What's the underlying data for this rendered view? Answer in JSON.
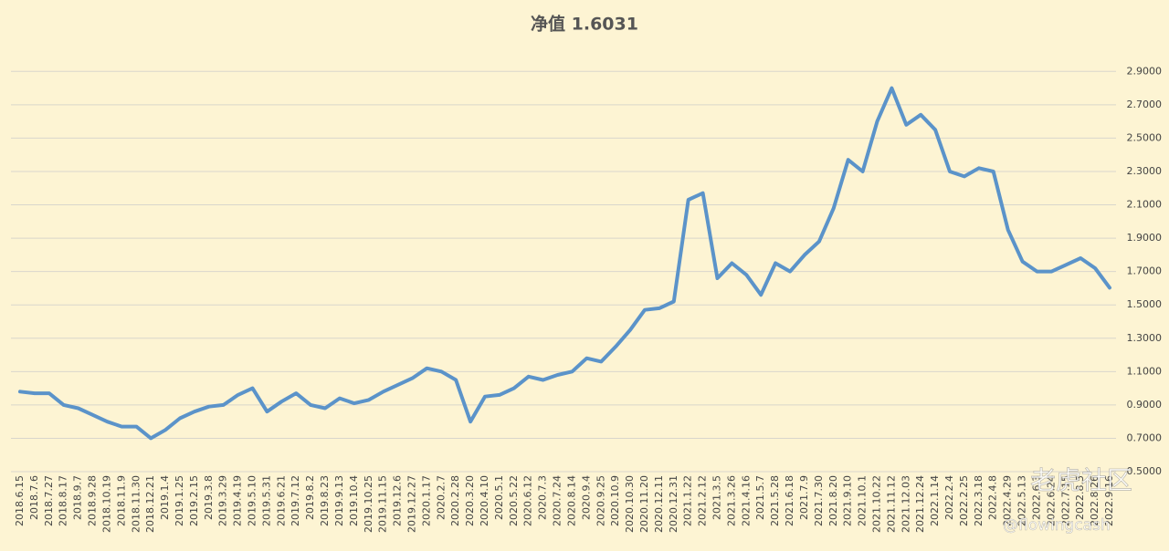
{
  "chart_data": {
    "type": "line",
    "title": "净值 1.6031",
    "categories": [
      "2018.6.15",
      "2018.7.6",
      "2018.7.27",
      "2018.8.17",
      "2018.9.7",
      "2018.9.28",
      "2018.10.19",
      "2018.11.9",
      "2018.11.30",
      "2018.12.21",
      "2019.1.4",
      "2019.1.25",
      "2019.2.15",
      "2019.3.8",
      "2019.3.29",
      "2019.4.19",
      "2019.5.10",
      "2019.5.31",
      "2019.6.21",
      "2019.7.12",
      "2019.8.2",
      "2019.8.23",
      "2019.9.13",
      "2019.10.4",
      "2019.10.25",
      "2019.11.15",
      "2019.12.6",
      "2019.12.27",
      "2020.1.17",
      "2020.2.7",
      "2020.2.28",
      "2020.3.20",
      "2020.4.10",
      "2020.5.1",
      "2020.5.22",
      "2020.6.12",
      "2020.7.3",
      "2020.7.24",
      "2020.8.14",
      "2020.9.4",
      "2020.9.25",
      "2020.10.9",
      "2020.10.30",
      "2020.11.20",
      "2020.12.11",
      "2020.12.31",
      "2021.1.22",
      "2021.2.12",
      "2021.3.5",
      "2021.3.26",
      "2021.4.16",
      "2021.5.7",
      "2021.5.28",
      "2021.6.18",
      "2021.7.9",
      "2021.7.30",
      "2021.8.20",
      "2021.9.10",
      "2021.10.1",
      "2021.10.22",
      "2021.11.12",
      "2021.12.03",
      "2021.12.24",
      "2022.1.14",
      "2022.2.4",
      "2022.2.25",
      "2022.3.18",
      "2022.4.8",
      "2022.4.29",
      "2022.5.13",
      "2022.6.3",
      "2022.6.24",
      "2022.7.15",
      "2022.8.5",
      "2022.8.26",
      "2022.9.16"
    ],
    "series": [
      {
        "name": "净值",
        "color": "#5b93c9",
        "values": [
          0.98,
          0.97,
          0.97,
          0.9,
          0.88,
          0.84,
          0.8,
          0.77,
          0.77,
          0.7,
          0.75,
          0.82,
          0.86,
          0.89,
          0.9,
          0.96,
          1.0,
          0.86,
          0.92,
          0.97,
          0.9,
          0.88,
          0.94,
          0.91,
          0.93,
          0.98,
          1.02,
          1.06,
          1.12,
          1.1,
          1.05,
          0.8,
          0.95,
          0.96,
          1.0,
          1.07,
          1.05,
          1.08,
          1.1,
          1.18,
          1.16,
          1.25,
          1.35,
          1.47,
          1.48,
          1.52,
          2.13,
          2.17,
          1.66,
          1.75,
          1.68,
          1.56,
          1.75,
          1.7,
          1.8,
          1.88,
          2.08,
          2.37,
          2.3,
          2.6,
          2.8,
          2.58,
          2.64,
          2.55,
          2.3,
          2.27,
          2.32,
          2.3,
          1.95,
          1.76,
          1.7,
          1.7,
          1.74,
          1.78,
          1.72,
          1.6031
        ]
      }
    ],
    "ylim": [
      0.5,
      3.0
    ],
    "yticks": [
      {
        "value": 0.5,
        "label": "0.5000"
      },
      {
        "value": 0.7,
        "label": "0.7000"
      },
      {
        "value": 0.9,
        "label": "0.9000"
      },
      {
        "value": 1.1,
        "label": "1.1000"
      },
      {
        "value": 1.3,
        "label": "1.3000"
      },
      {
        "value": 1.5,
        "label": "1.5000"
      },
      {
        "value": 1.7,
        "label": "1.7000"
      },
      {
        "value": 1.9,
        "label": "1.9000"
      },
      {
        "value": 2.1,
        "label": "2.1000"
      },
      {
        "value": 2.3,
        "label": "2.3000"
      },
      {
        "value": 2.5,
        "label": "2.5000"
      },
      {
        "value": 2.7,
        "label": "2.7000"
      },
      {
        "value": 2.9,
        "label": "2.9000"
      }
    ],
    "grid": true,
    "watermark": "老虎社区",
    "watermark_handle": "@flowingcash"
  }
}
